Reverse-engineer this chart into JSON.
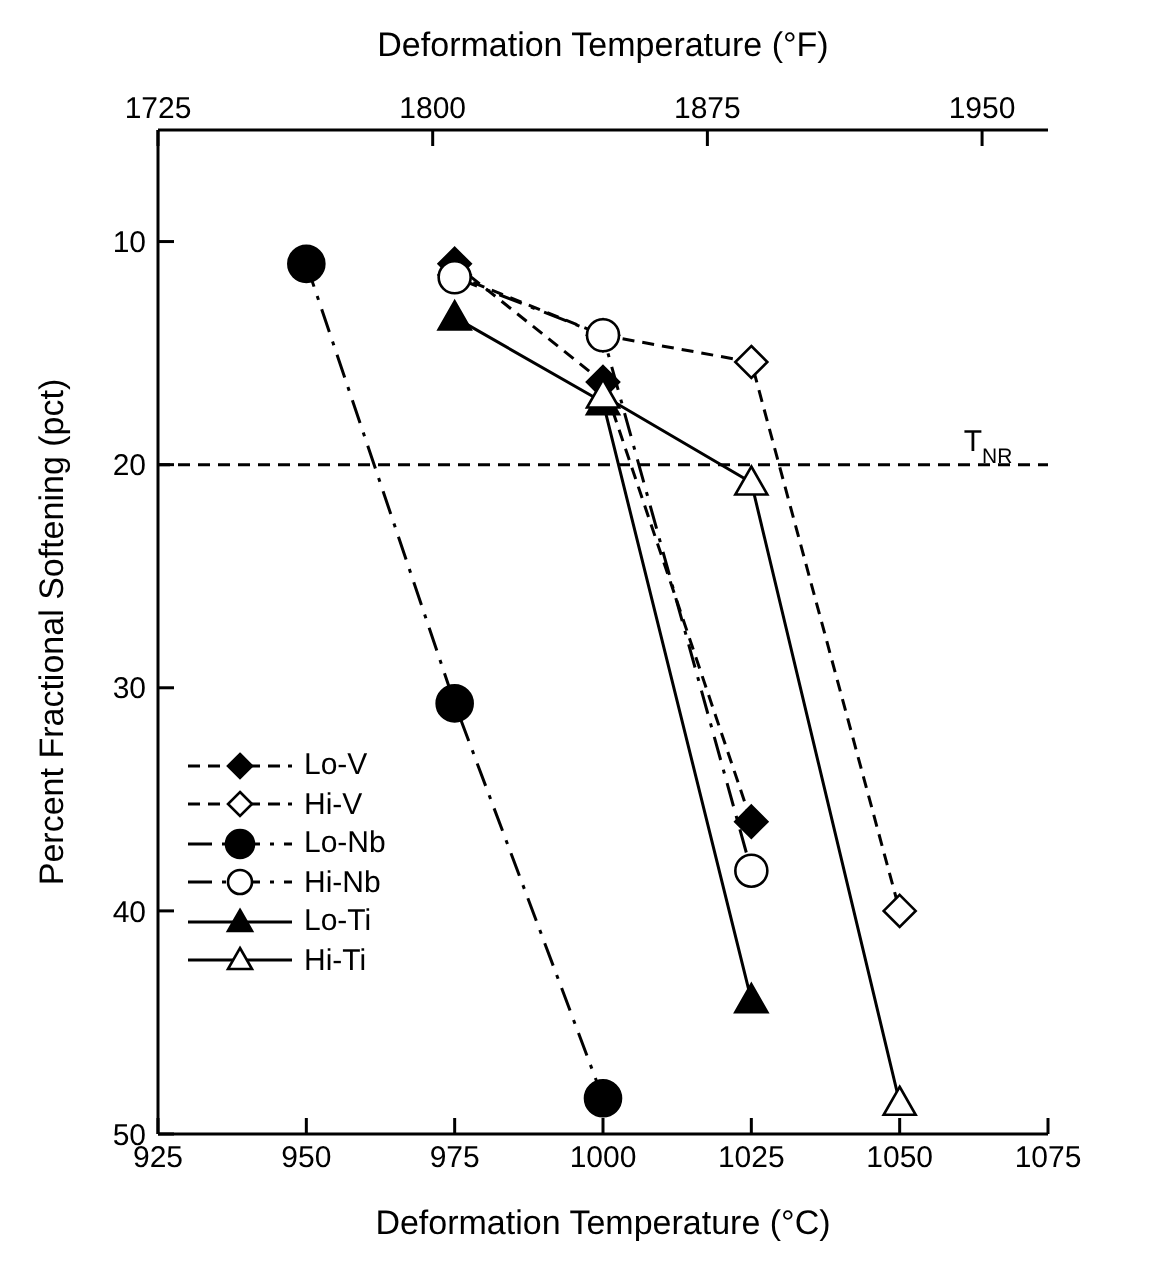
{
  "chart_data": {
    "type": "line",
    "xlabel": "Deformation Temperature (°C)",
    "x2label": "Deformation Temperature (°F)",
    "ylabel": "Percent Fractional Softening (pct)",
    "xlim": [
      925,
      1075
    ],
    "xticks": [
      925,
      950,
      975,
      1000,
      1025,
      1050,
      1075
    ],
    "x2lim": [
      1725,
      1968
    ],
    "x2ticks": [
      1725,
      1800,
      1875,
      1950
    ],
    "ylim": [
      50,
      5
    ],
    "yticks": [
      10,
      20,
      30,
      40,
      50
    ],
    "grid": false,
    "legend": "bottom left",
    "ref_lines": [
      {
        "axis": "y",
        "value": 20,
        "label": "T$_{NR}$",
        "line_style": "dashed",
        "color": "#000000"
      }
    ],
    "series": [
      {
        "name": "Lo-V",
        "color": "#000000",
        "marker": "diamond",
        "line_style": "dashed",
        "x": [
          975,
          1000,
          1025
        ],
        "values": [
          11,
          16.3,
          36
        ]
      },
      {
        "name": "Hi-V",
        "color": "#000000",
        "marker": "diamond",
        "colors": [
          "#ffffff",
          "#ffffff",
          "#ffffff",
          "#ffffff"
        ],
        "line_style": "dashed",
        "x": [
          975,
          1000,
          1025,
          1050
        ],
        "values": [
          11.5,
          14.2,
          15.4,
          40
        ]
      },
      {
        "name": "Lo-Nb",
        "color": "#000000",
        "marker": "circle",
        "line_style": "dashdot",
        "x": [
          950,
          975,
          1000
        ],
        "values": [
          11,
          30.7,
          48.4
        ]
      },
      {
        "name": "Hi-Nb",
        "color": "#000000",
        "marker": "circle",
        "colors": [
          "#ffffff",
          "#ffffff",
          "#ffffff"
        ],
        "line_style": "dashdot",
        "x": [
          975,
          1000,
          1025
        ],
        "values": [
          11.6,
          14.2,
          38.2
        ]
      },
      {
        "name": "Lo-Ti",
        "color": "#000000",
        "marker": "triangle",
        "line_style": "solid",
        "x": [
          975,
          1000,
          1025
        ],
        "values": [
          13.4,
          17.2,
          44
        ]
      },
      {
        "name": "Hi-Ti",
        "color": "#000000",
        "marker": "triangle",
        "colors": [
          "#ffffff",
          "#ffffff",
          "#ffffff"
        ],
        "line_style": "solid",
        "x": [
          1000,
          1025,
          1050
        ],
        "values": [
          16.9,
          20.8,
          48.6
        ]
      }
    ]
  }
}
